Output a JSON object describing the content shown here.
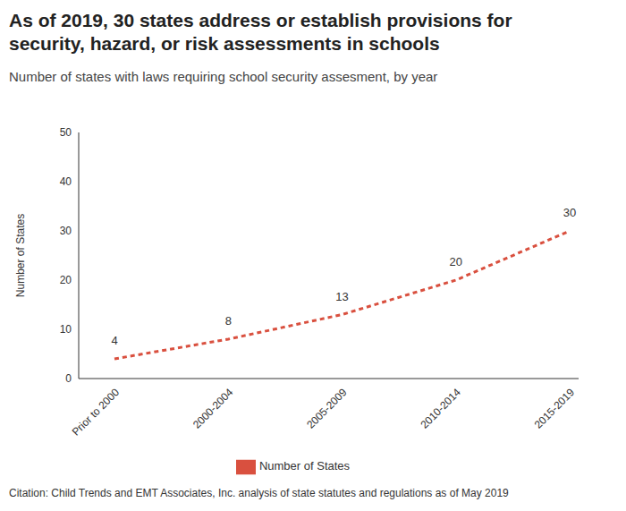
{
  "chart_data": {
    "type": "line",
    "title": "As of 2019, 30 states address or establish provisions for security, hazard, or risk assessments in schools",
    "subtitle": "Number of states with laws requiring school security assesment, by year",
    "y_label": "Number of States",
    "caption": "Citation: Child Trends and EMT Associates, Inc. analysis of state statutes and regulations as of May 2019",
    "categories": [
      "Prior to 2000",
      "2000-2004",
      "2005-2009",
      "2010-2014",
      "2015-2019"
    ],
    "series": [
      {
        "name": "Number of States",
        "color": "#d9503f",
        "values": [
          4,
          8,
          13,
          20,
          30
        ],
        "line_style": "dashed"
      }
    ],
    "ylim": [
      0,
      50
    ],
    "yticks": [
      0,
      10,
      20,
      30,
      40,
      50
    ],
    "grid": false,
    "data_labels": true,
    "legend": "bottom"
  }
}
